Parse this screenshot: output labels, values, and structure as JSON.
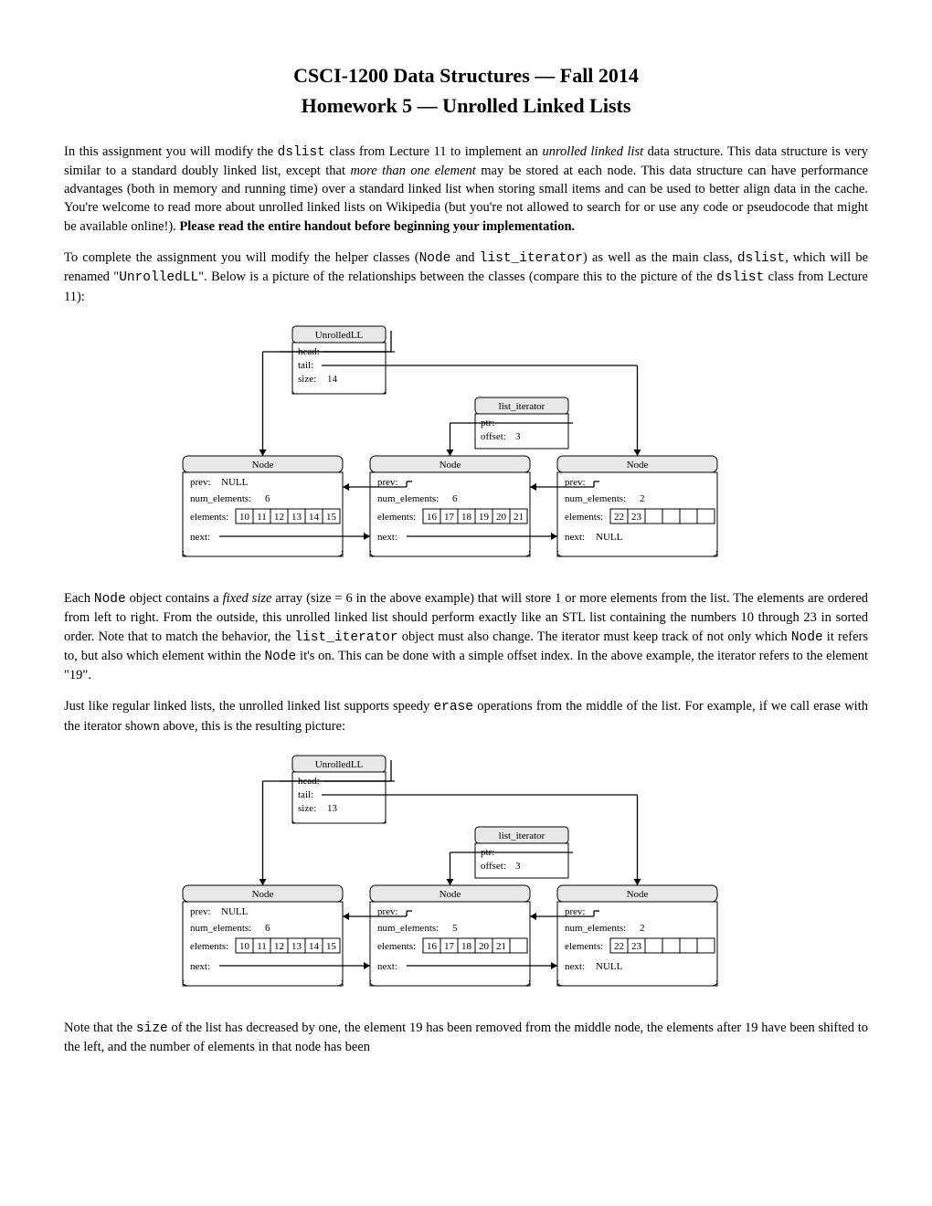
{
  "title_line1": "CSCI-1200 Data Structures — Fall 2014",
  "title_line2": "Homework 5 — Unrolled Linked Lists",
  "para1_pre": "In this assignment you will modify the ",
  "para1_code1": "dslist",
  "para1_mid1": " class from Lecture 11 to implement an ",
  "para1_it1": "unrolled linked list",
  "para1_mid2": " data structure. This data structure is very similar to a standard doubly linked list, except that ",
  "para1_it2": "more than one element",
  "para1_mid3": " may be stored at each node. This data structure can have performance advantages (both in memory and running time) over a standard linked list when storing small items and can be used to better align data in the cache. You're welcome to read more about unrolled linked lists on Wikipedia (but you're not allowed to search for or use any code or pseudocode that might be available online!). ",
  "para1_bold": "Please read the entire handout before beginning your implementation.",
  "para2_pre": "To complete the assignment you will modify the helper classes (",
  "para2_code1": "Node",
  "para2_mid1": " and ",
  "para2_code2": "list_iterator",
  "para2_mid2": ") as well as the main class, ",
  "para2_code3": "dslist",
  "para2_mid3": ", which will be renamed \"",
  "para2_code4": "UnrolledLL",
  "para2_mid4": "\". Below is a picture of the relationships between the classes (compare this to the picture of the ",
  "para2_code5": "dslist",
  "para2_post": " class from Lecture 11):",
  "para3_pre": "Each ",
  "para3_code1": "Node",
  "para3_mid1": " object contains a ",
  "para3_it1": "fixed size",
  "para3_mid2": " array (size = 6 in the above example) that will store 1 or more elements from the list. The elements are ordered from left to right. From the outside, this unrolled linked list should perform exactly like an STL list containing the numbers 10 through 23 in sorted order. Note that to match the behavior, the ",
  "para3_code2": "list_iterator",
  "para3_mid3": " object must also change. The iterator must keep track of not only which ",
  "para3_code3": "Node",
  "para3_mid4": " it refers to, but also which element within the ",
  "para3_code4": "Node",
  "para3_post": " it's on. This can be done with a simple offset index. In the above example, the iterator refers to the element \"19\".",
  "para4_pre": "Just like regular linked lists, the unrolled linked list supports speedy ",
  "para4_code1": "erase",
  "para4_post": " operations from the middle of the list. For example, if we call erase with the iterator shown above, this is the resulting picture:",
  "para5_pre": "Note that the ",
  "para5_code1": "size",
  "para5_post": " of the list has decreased by one, the element 19 has been removed from the middle node, the elements after 19 have been shifted to the left, and the number of elements in that node has been",
  "diag1": {
    "unrolled_label": "UnrolledLL<int>",
    "head_label": "head:",
    "tail_label": "tail:",
    "size_label": "size:",
    "size_val": "14",
    "iter_label": "list_iterator<int>",
    "ptr_label": "ptr:",
    "offset_label": "offset:",
    "offset_val": "3",
    "node_label": "Node<int>",
    "prev_label": "prev:",
    "null_label": "NULL",
    "numel_label": "num_elements:",
    "elements_label": "elements:",
    "next_label": "next:",
    "node1": {
      "numel": "6",
      "vals": [
        "10",
        "11",
        "12",
        "13",
        "14",
        "15"
      ]
    },
    "node2": {
      "numel": "6",
      "vals": [
        "16",
        "17",
        "18",
        "19",
        "20",
        "21"
      ]
    },
    "node3": {
      "numel": "2",
      "vals": [
        "22",
        "23",
        "",
        "",
        "",
        ""
      ]
    }
  },
  "diag2": {
    "size_val": "13",
    "offset_val": "3",
    "node1": {
      "numel": "6",
      "vals": [
        "10",
        "11",
        "12",
        "13",
        "14",
        "15"
      ]
    },
    "node2": {
      "numel": "5",
      "vals": [
        "16",
        "17",
        "18",
        "20",
        "21",
        ""
      ]
    },
    "node3": {
      "numel": "2",
      "vals": [
        "22",
        "23",
        "",
        "",
        "",
        ""
      ]
    }
  },
  "colors": {
    "box_fill": "#e8e8e8",
    "stroke": "#000000"
  }
}
